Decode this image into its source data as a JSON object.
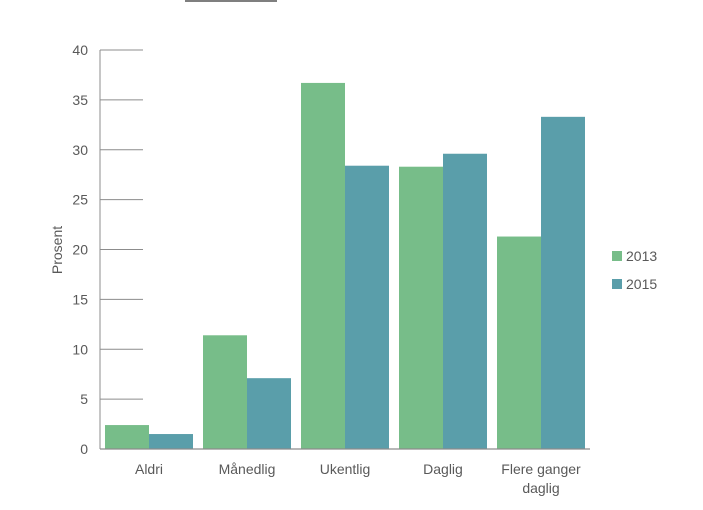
{
  "chart_data": {
    "type": "bar",
    "categories": [
      "Aldri",
      "Månedlig",
      "Ukentlig",
      "Daglig",
      "Flere ganger daglig"
    ],
    "category_lines": [
      [
        "Aldri"
      ],
      [
        "Månedlig"
      ],
      [
        "Ukentlig"
      ],
      [
        "Daglig"
      ],
      [
        "Flere ganger",
        "daglig"
      ]
    ],
    "series": [
      {
        "name": "2013",
        "color": "#77bd89",
        "values": [
          2.4,
          11.4,
          36.7,
          28.3,
          21.3
        ]
      },
      {
        "name": "2015",
        "color": "#5a9eaa",
        "values": [
          1.5,
          7.1,
          28.4,
          29.6,
          33.3
        ]
      }
    ],
    "title": "",
    "xlabel": "",
    "ylabel": "Prosent",
    "ylim": [
      0,
      40
    ],
    "yticks": [
      0,
      5,
      10,
      15,
      20,
      25,
      30,
      35,
      40
    ],
    "legend_position": "right",
    "grid": false
  }
}
